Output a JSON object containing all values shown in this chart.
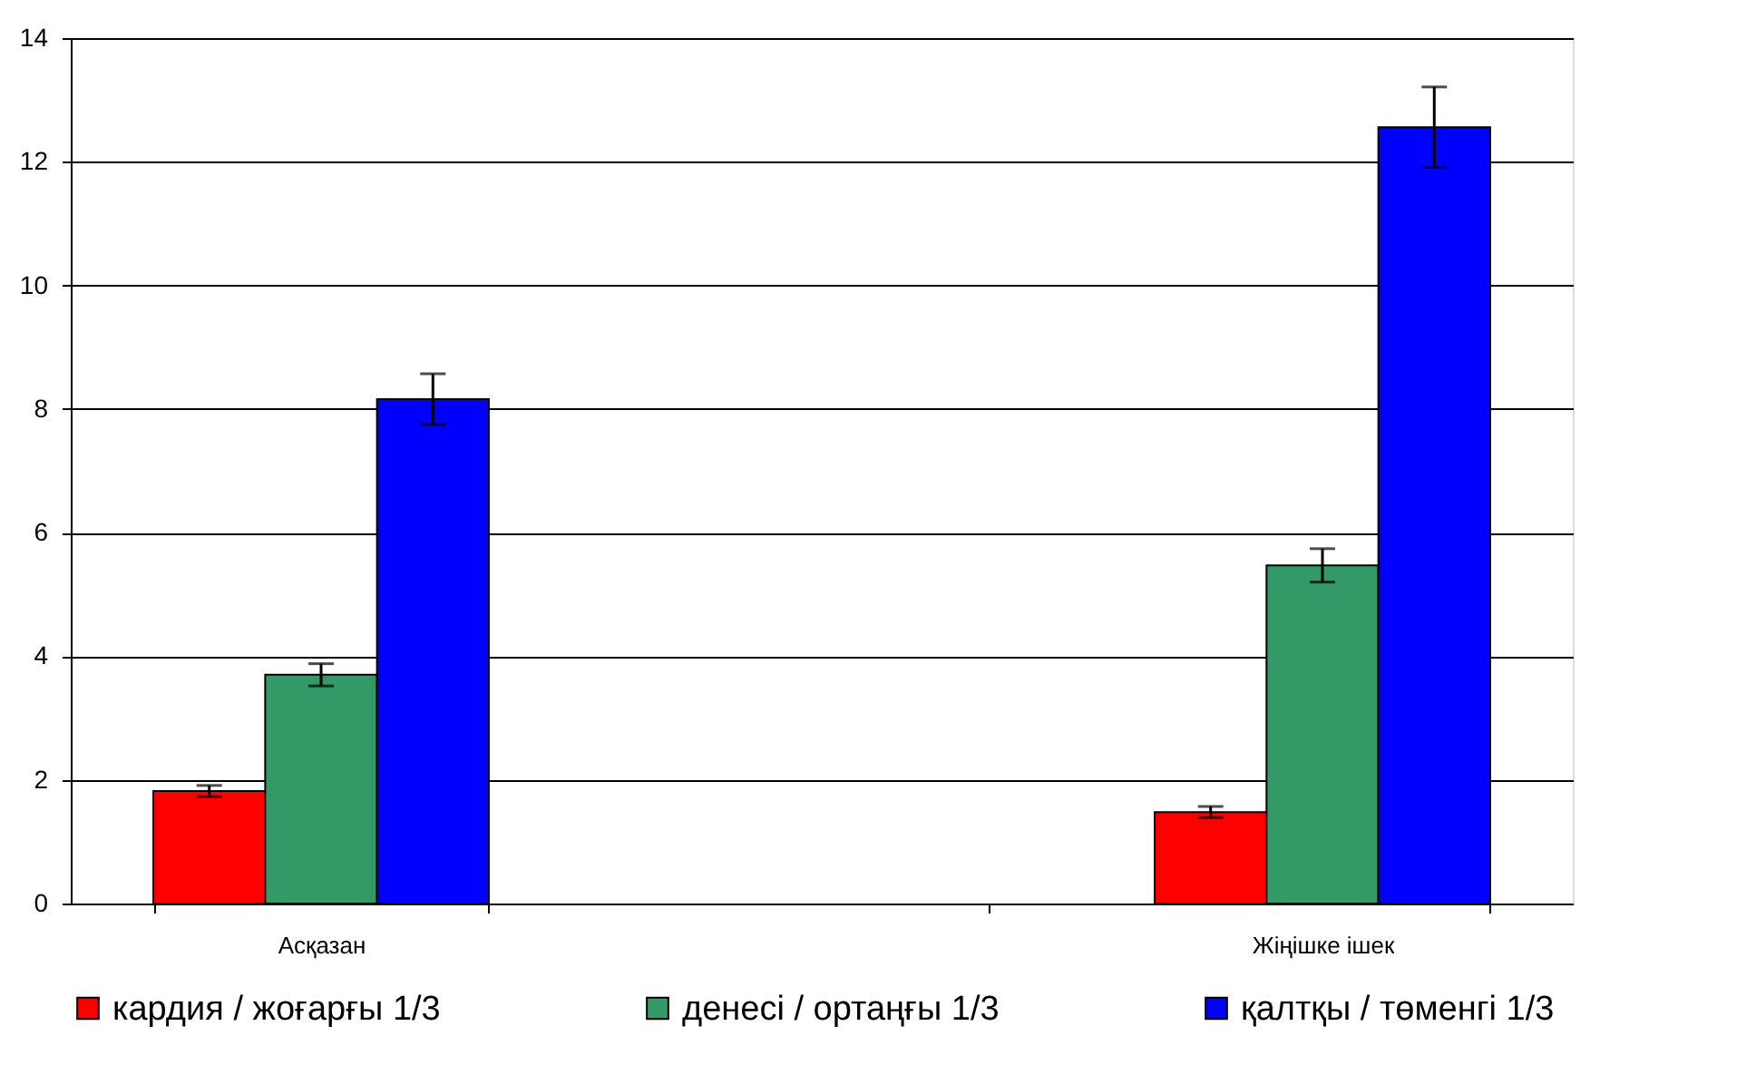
{
  "chart_data": {
    "type": "bar",
    "categories": [
      "Асқазан",
      null,
      "Жіңішке ішек"
    ],
    "series": [
      {
        "name": "кардия / жоғарғы 1/3",
        "color": "#ff0000",
        "values": [
          1.82,
          null,
          1.48
        ],
        "errors": [
          0.09,
          null,
          0.09
        ]
      },
      {
        "name": "денесі / ортаңғы 1/3",
        "color": "#339966",
        "values": [
          3.7,
          null,
          5.47
        ],
        "errors": [
          0.18,
          null,
          0.27
        ]
      },
      {
        "name": "қалтқы / төменгі 1/3",
        "color": "#0000ff",
        "values": [
          8.16,
          null,
          12.56
        ],
        "errors": [
          0.41,
          null,
          0.65
        ]
      }
    ],
    "ylim": [
      0,
      14
    ],
    "yticks": [
      0,
      2,
      4,
      6,
      8,
      10,
      12,
      14
    ],
    "grid": "y",
    "legend": "bottom"
  }
}
